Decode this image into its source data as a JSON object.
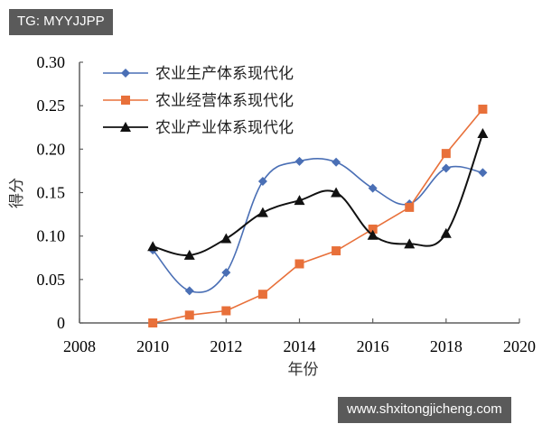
{
  "watermarks": {
    "top": "TG: MYYJJPP",
    "bottom": "www.shxitongjicheng.com"
  },
  "chart_data": {
    "type": "line",
    "title": "",
    "xlabel": "年份",
    "ylabel": "得分",
    "xlim": [
      2008,
      2020
    ],
    "ylim": [
      0,
      0.3
    ],
    "x_ticks": [
      "2008",
      "2010",
      "2012",
      "2014",
      "2016",
      "2018",
      "2020"
    ],
    "y_ticks": [
      "0",
      "0.05",
      "0.10",
      "0.15",
      "0.20",
      "0.25",
      "0.30"
    ],
    "grid": false,
    "legend_position": "upper-left",
    "x": [
      2010,
      2011,
      2012,
      2013,
      2014,
      2015,
      2016,
      2017,
      2018,
      2019
    ],
    "series": [
      {
        "name": "农业生产体系现代化",
        "color": "#4a6fb5",
        "marker": "diamond",
        "smooth": true,
        "values": [
          0.084,
          0.037,
          0.058,
          0.163,
          0.186,
          0.185,
          0.155,
          0.137,
          0.178,
          0.173
        ]
      },
      {
        "name": "农业经营体系现代化",
        "color": "#e8703a",
        "marker": "square",
        "smooth": false,
        "values": [
          0.0,
          0.009,
          0.014,
          0.033,
          0.068,
          0.083,
          0.108,
          0.133,
          0.195,
          0.246
        ]
      },
      {
        "name": "农业产业体系现代化",
        "color": "#111111",
        "marker": "triangle",
        "smooth": true,
        "values": [
          0.088,
          0.078,
          0.097,
          0.127,
          0.141,
          0.15,
          0.101,
          0.091,
          0.103,
          0.218
        ]
      }
    ]
  }
}
